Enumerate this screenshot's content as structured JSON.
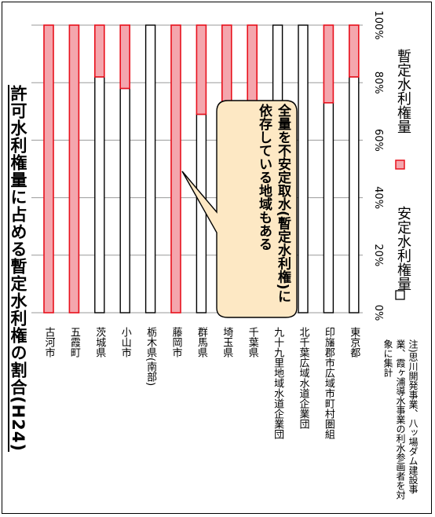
{
  "chart_data": {
    "type": "bar",
    "title": "許可水利権量に占める暫定水利権の割合(H24)",
    "categories": [
      "古河市",
      "五霞町",
      "茨城県",
      "小山市",
      "栃木県(南部)",
      "藤岡市",
      "群馬県",
      "埼玉県",
      "千葉県",
      "九十九里地域水道企業団",
      "北千葉広域水道企業団",
      "印旛郡市広域市町村圏組",
      "東京都"
    ],
    "series": [
      {
        "name": "安定水利権量",
        "values": [
          0,
          0,
          82,
          78,
          100,
          0,
          69,
          71,
          69,
          100,
          100,
          73,
          82
        ]
      },
      {
        "name": "暫定水利権量",
        "values": [
          100,
          100,
          18,
          22,
          0,
          100,
          31,
          29,
          31,
          0,
          0,
          27,
          18
        ]
      }
    ],
    "axis_ticks": [
      "0%",
      "20%",
      "40%",
      "60%",
      "80%",
      "100%"
    ],
    "ylim": [
      0,
      100
    ],
    "stacked": true,
    "grid": true,
    "legend_position": "bottom",
    "annotation": "全量を不安定取水(暫定水利権)に依存している地域もある",
    "note": "注)思川開発事業、八ッ場ダム建設事業、霞ヶ浦導水事業の利水参画者を対象に集計",
    "colors": {
      "stable": "#ffffff",
      "provisional": "#f4a6ad",
      "provisional_edge": "#e8101c",
      "stable_edge": "#000000",
      "callout_fill": "#fde8c4"
    }
  }
}
